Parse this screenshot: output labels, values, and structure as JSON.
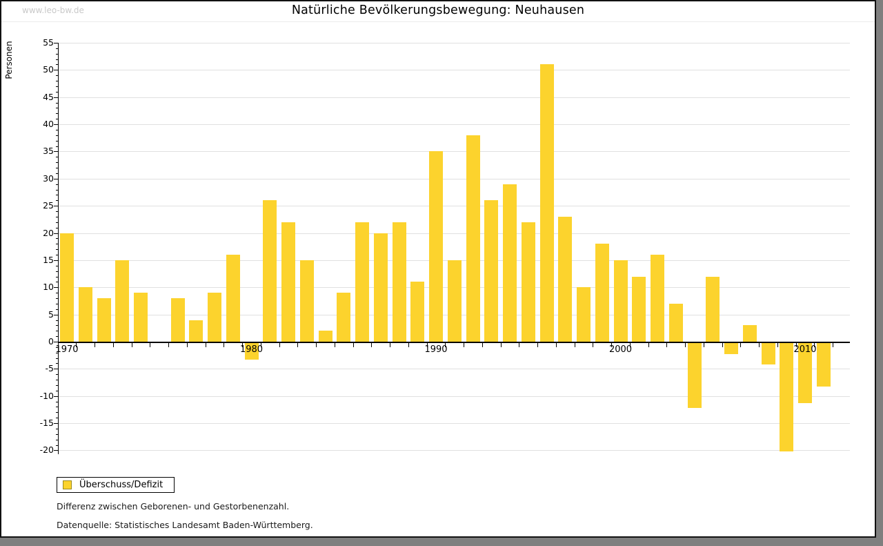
{
  "page": {
    "watermark": "www.leo-bw.de",
    "title": "Natürliche Bevölkerungsbewegung: Neuhausen"
  },
  "legend": {
    "label": "Überschuss/Defizit"
  },
  "notes": {
    "line1": "Differenz zwischen Geborenen- und Gestorbenenzahl.",
    "line2": "Datenquelle: Statistisches Landesamt Baden-Württemberg."
  },
  "colors": {
    "bar": "#fcd32d",
    "grid": "#e0e0e0",
    "axis": "#000000",
    "watermark": "#c9c9c9",
    "shadow": "#7f7f7f",
    "swatch_border": "#9a8a20"
  },
  "chart_data": {
    "type": "bar",
    "title": "Natürliche Bevölkerungsbewegung: Neuhausen",
    "xlabel": "",
    "ylabel": "Personen",
    "legend_entries": [
      "Überschuss/Defizit"
    ],
    "legend_position": "bottom-left",
    "grid": true,
    "ylim": [
      -20,
      55
    ],
    "ytick_major_step": 5,
    "ytick_minor_step": 1,
    "xtick_labeled_years": [
      1970,
      1980,
      1990,
      2000,
      2010
    ],
    "x": [
      1970,
      1971,
      1972,
      1973,
      1974,
      1975,
      1976,
      1977,
      1978,
      1979,
      1980,
      1981,
      1982,
      1983,
      1984,
      1985,
      1986,
      1987,
      1988,
      1989,
      1990,
      1991,
      1992,
      1993,
      1994,
      1995,
      1996,
      1997,
      1998,
      1999,
      2000,
      2001,
      2002,
      2003,
      2004,
      2005,
      2006,
      2007,
      2008,
      2009,
      2010,
      2011
    ],
    "values": [
      20,
      10,
      8,
      15,
      9,
      0,
      8,
      4,
      9,
      16,
      -3,
      26,
      22,
      15,
      2,
      9,
      22,
      20,
      22,
      11,
      35,
      15,
      38,
      26,
      29,
      22,
      51,
      23,
      10,
      18,
      15,
      12,
      16,
      7,
      -12,
      12,
      -2,
      3,
      -4,
      -20,
      -11,
      -8
    ]
  }
}
